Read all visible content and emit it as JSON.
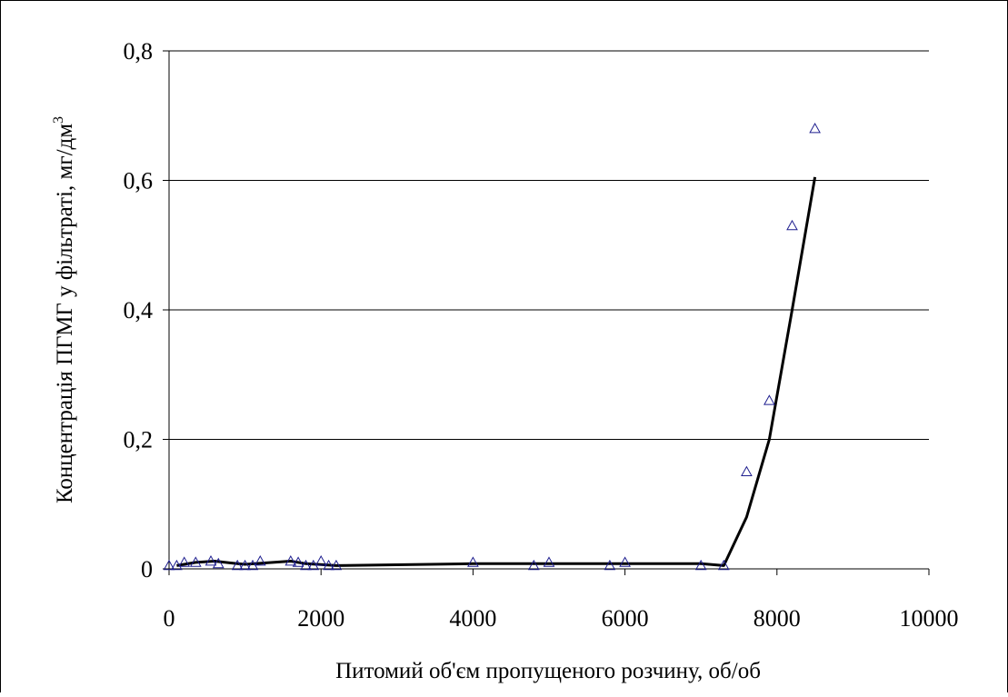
{
  "chart_data": {
    "type": "scatter",
    "title": "",
    "xlabel": "Питомий об'єм пропущеного розчину, об/об",
    "ylabel": "Концентрація ПГМГ у фільтраті, мг/дм",
    "ylabel_superscript": "3",
    "xlim": [
      0,
      10000
    ],
    "ylim": [
      0,
      0.8
    ],
    "x_ticks": [
      "0",
      "2000",
      "4000",
      "6000",
      "8000",
      "10000"
    ],
    "y_ticks": [
      "0",
      "0,2",
      "0,4",
      "0,6",
      "0,8"
    ],
    "grid": "horizontal",
    "legend": "none",
    "series": [
      {
        "kind": "markers",
        "marker": "triangle-open",
        "color": "#1f1f8f",
        "points": [
          [
            0,
            0.005
          ],
          [
            100,
            0.005
          ],
          [
            200,
            0.01
          ],
          [
            350,
            0.01
          ],
          [
            550,
            0.012
          ],
          [
            650,
            0.008
          ],
          [
            900,
            0.005
          ],
          [
            1000,
            0.005
          ],
          [
            1100,
            0.005
          ],
          [
            1200,
            0.012
          ],
          [
            1600,
            0.012
          ],
          [
            1700,
            0.01
          ],
          [
            1800,
            0.005
          ],
          [
            1900,
            0.005
          ],
          [
            2000,
            0.012
          ],
          [
            2100,
            0.005
          ],
          [
            2200,
            0.005
          ],
          [
            4000,
            0.01
          ],
          [
            4800,
            0.005
          ],
          [
            5000,
            0.01
          ],
          [
            5800,
            0.005
          ],
          [
            6000,
            0.01
          ],
          [
            7000,
            0.005
          ],
          [
            7300,
            0.005
          ],
          [
            7600,
            0.15
          ],
          [
            7900,
            0.26
          ],
          [
            8200,
            0.53
          ],
          [
            8500,
            0.68
          ]
        ]
      },
      {
        "kind": "line",
        "color": "#000000",
        "points": [
          [
            100,
            0.005
          ],
          [
            350,
            0.01
          ],
          [
            600,
            0.012
          ],
          [
            900,
            0.008
          ],
          [
            1000,
            0.007
          ],
          [
            1600,
            0.012
          ],
          [
            1800,
            0.008
          ],
          [
            2200,
            0.005
          ],
          [
            4000,
            0.008
          ],
          [
            6000,
            0.008
          ],
          [
            7000,
            0.008
          ],
          [
            7300,
            0.005
          ],
          [
            7600,
            0.08
          ],
          [
            7900,
            0.2
          ],
          [
            8200,
            0.4
          ],
          [
            8500,
            0.605
          ]
        ]
      }
    ]
  }
}
